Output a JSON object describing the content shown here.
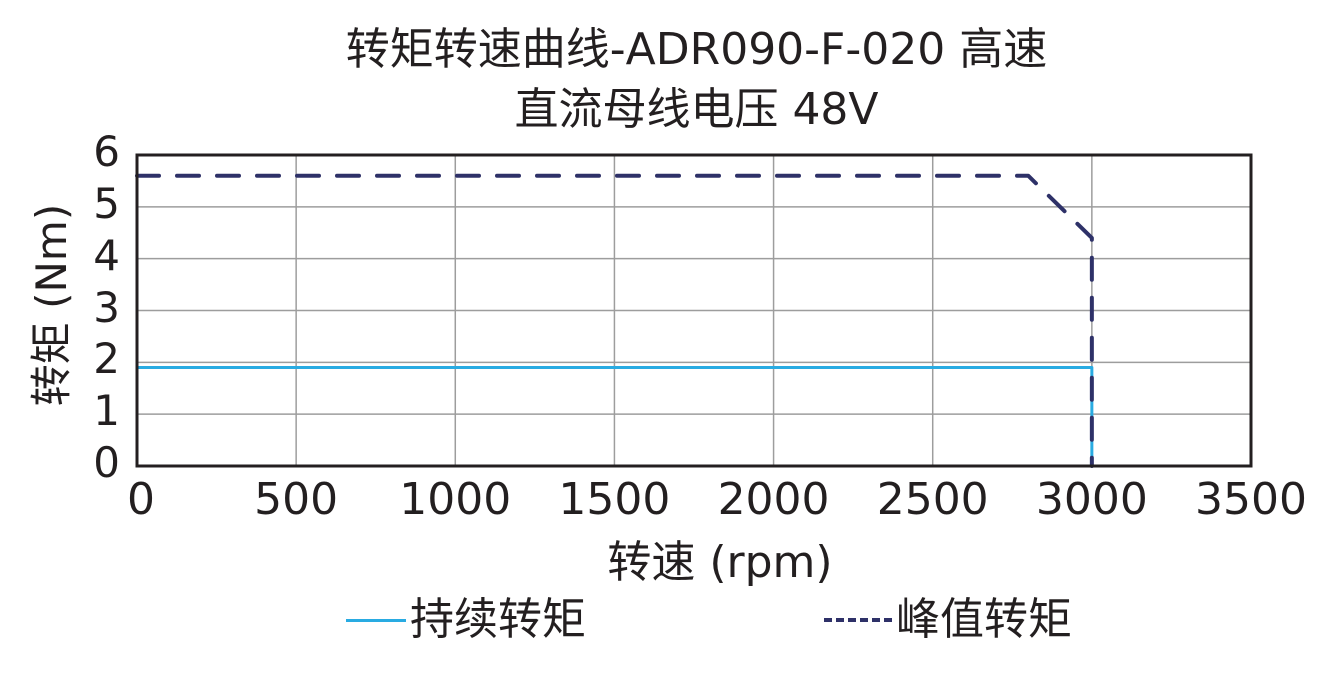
{
  "chart_data": {
    "type": "line",
    "title": "转矩转速曲线-ADR090-F-020 高速",
    "subtitle": "直流母线电压 48V",
    "xlabel": "转速 (rpm)",
    "ylabel": "转矩 (Nm)",
    "xlim": [
      0,
      3500
    ],
    "ylim": [
      0,
      6
    ],
    "x_ticks": [
      "0",
      "500",
      "1000",
      "1500",
      "2000",
      "2500",
      "3000",
      "3500"
    ],
    "y_ticks": [
      "0",
      "1",
      "2",
      "3",
      "4",
      "5",
      "6"
    ],
    "grid": true,
    "legend_position": "bottom",
    "series": [
      {
        "name": "持续转矩",
        "style": "solid",
        "color": "#29abe2",
        "points": [
          [
            0,
            1.9
          ],
          [
            3000,
            1.9
          ],
          [
            3000,
            0
          ]
        ]
      },
      {
        "name": "峰值转矩",
        "style": "dashed",
        "color": "#2e3168",
        "points": [
          [
            0,
            5.6
          ],
          [
            2800,
            5.6
          ],
          [
            3000,
            4.4
          ],
          [
            3000,
            0
          ]
        ]
      }
    ]
  },
  "legend": {
    "continuous": "持续转矩",
    "peak": "峰值转矩"
  }
}
